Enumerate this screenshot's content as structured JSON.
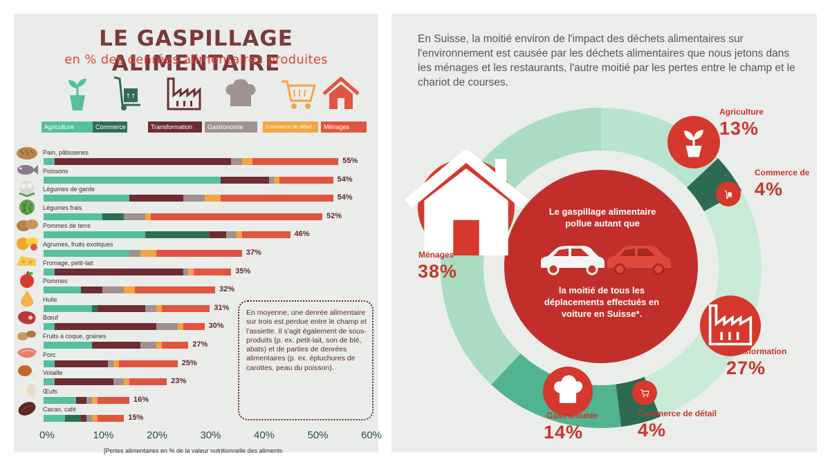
{
  "left": {
    "title": "LE GASPILLAGE ALIMENTAIRE",
    "subtitle": "en % des denrées alimentaires produites",
    "categories": [
      {
        "label": "Agriculture",
        "color": "#55bfa0",
        "icon": "plant-pot-icon"
      },
      {
        "label": "Commerce",
        "color": "#2f6e55",
        "icon": "hand-truck-icon"
      },
      {
        "label": "Transformation",
        "color": "#6e2d32",
        "icon": "factory-icon"
      },
      {
        "label": "Gastronomie",
        "color": "#a09292",
        "icon": "chef-hat-icon"
      },
      {
        "label": "Commerce de détail",
        "color": "#f2a541",
        "icon": "shopping-cart-icon"
      },
      {
        "label": "Ménages",
        "color": "#e0553f",
        "icon": "house-icon"
      }
    ],
    "note": "En moyenne, une denrée alimentaire sur trois est perdue entre le champ et l'assiette. Il s'agit également de sous-produits (p. ex. petit-lait, son de blé, abats) et de parties de denrées alimentaires (p. ex. épluchures de carottes, peau du poisson).",
    "footnote": "[Pertes alimentaires en % de la valeur nutritionnelle des aliments"
  },
  "chart_data": [
    {
      "type": "bar",
      "orientation": "horizontal",
      "stacked": true,
      "title": "LE GASPILLAGE ALIMENTAIRE",
      "subtitle": "en % des denrées alimentaires produites",
      "xlim": [
        0,
        60
      ],
      "x_ticks": [
        "0%",
        "10%",
        "20%",
        "30%",
        "40%",
        "50%",
        "60%"
      ],
      "legend": [
        "Agriculture",
        "Commerce",
        "Transformation",
        "Gastronomie",
        "Commerce de détail",
        "Ménages"
      ],
      "legend_position": "top",
      "categories": [
        "Pain, pâtisseries",
        "Poissons",
        "Légumes de garde",
        "Légumes frais",
        "Pommes de terre",
        "Agrumes, fruits exotiques",
        "Fromage, petit-lait",
        "Pommes",
        "Huile",
        "Bœuf",
        "Fruits à coque, graines",
        "Porc",
        "Volaille",
        "Œufs",
        "Cacao, café"
      ],
      "category_icons": [
        "bread-icon",
        "fish-icon",
        "cauliflower-icon",
        "cabbage-icon",
        "potato-icon",
        "citrus-icon",
        "cheese-icon",
        "apple-icon",
        "oil-drop-icon",
        "beef-icon",
        "nuts-icon",
        "pork-icon",
        "poultry-icon",
        "eggs-icon",
        "cocoa-icon"
      ],
      "totals": [
        55,
        54,
        54,
        52,
        46,
        37,
        35,
        32,
        31,
        30,
        27,
        25,
        23,
        16,
        15
      ],
      "total_labels": [
        "55%",
        "54%",
        "54%",
        "52%",
        "46%",
        "37%",
        "35%",
        "32%",
        "31%",
        "30%",
        "27%",
        "25%",
        "23%",
        "16%",
        "15%"
      ],
      "series": [
        {
          "name": "Agriculture",
          "values": [
            2,
            33,
            16,
            11,
            19,
            16,
            2,
            7,
            9,
            2,
            9,
            2,
            2,
            6,
            4
          ]
        },
        {
          "name": "Commerce",
          "values": [
            0,
            0,
            0,
            4,
            12,
            0,
            0,
            0,
            1,
            0,
            0,
            0,
            0,
            0,
            3
          ]
        },
        {
          "name": "Transformation",
          "values": [
            33,
            9,
            10,
            0,
            3,
            0,
            24,
            4,
            9,
            19,
            9,
            10,
            11,
            2,
            1
          ]
        },
        {
          "name": "Gastronomie",
          "values": [
            2,
            1,
            4,
            4,
            2,
            2,
            1,
            4,
            2,
            4,
            3,
            1,
            2,
            1,
            1
          ]
        },
        {
          "name": "Commerce de détail",
          "values": [
            2,
            1,
            3,
            1,
            1,
            3,
            1,
            2,
            1,
            1,
            1,
            1,
            1,
            1,
            1
          ]
        },
        {
          "name": "Ménages",
          "values": [
            16,
            10,
            21,
            32,
            9,
            16,
            7,
            15,
            9,
            4,
            5,
            11,
            7,
            6,
            5
          ]
        }
      ]
    },
    {
      "type": "pie",
      "donut": true,
      "categories": [
        "Agriculture",
        "Commerce de",
        "Transformation",
        "Commerce de détail",
        "Gastronomie",
        "Ménages"
      ],
      "values": [
        13,
        4,
        27,
        4,
        14,
        38
      ],
      "value_labels": [
        "13%",
        "4%",
        "27%",
        "4%",
        "14%",
        "38%"
      ],
      "colors": [
        "#b8e4cf",
        "#2d6a52",
        "#c7ebd6",
        "#2d6a52",
        "#4fb48f",
        "#a9dcc3"
      ],
      "icons": [
        "plant-pot-icon",
        "hand-truck-icon",
        "factory-icon",
        "shopping-cart-icon",
        "chef-hat-icon",
        "house-icon"
      ]
    }
  ],
  "right": {
    "intro": "En Suisse, la moitié environ de l'impact des déchets alimentaires sur l'environnement est causée par les déchets alimentaires que nous jetons dans les ménages et les restaurants, l'autre moitié par les pertes entre le champ et le chariot de courses.",
    "center_top": "Le gaspillage alimentaire pollue autant que",
    "center_bottom": "la moitié de tous les déplacements effectués en voiture en Suisse*.",
    "labels": [
      "Agriculture",
      "Commerce de",
      "Transformation",
      "Commerce de détail",
      "Gastronomie",
      "Ménages"
    ],
    "pcts": [
      "13%",
      "4%",
      "27%",
      "4%",
      "14%",
      "38%"
    ],
    "accent": "#d5382c"
  }
}
